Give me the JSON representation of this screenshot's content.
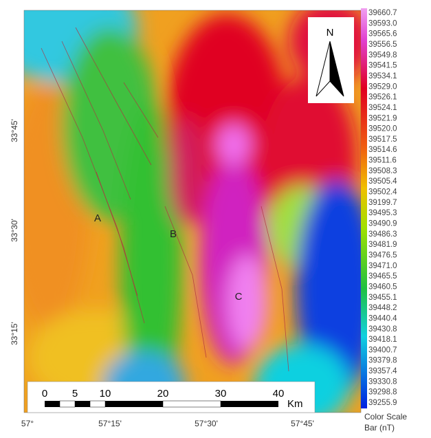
{
  "map": {
    "latitude_labels": [
      "33°45'",
      "33°30'",
      "33°15'"
    ],
    "longitude_labels": [
      "57°",
      "57°15'",
      "57°30'",
      "57°45'"
    ],
    "zones": [
      "A",
      "B",
      "C"
    ],
    "north_arrow": "N",
    "scale_bar": {
      "labels": [
        "0",
        "5",
        "10",
        "20",
        "30",
        "40"
      ],
      "unit": "Km"
    },
    "color_scale": {
      "title": [
        "Color Scale",
        "Bar (nT)"
      ],
      "labels": [
        "39660.7",
        "39593.0",
        "39565.6",
        "39556.5",
        "39549.8",
        "39541.5",
        "39534.1",
        "39529.0",
        "39526.1",
        "39524.1",
        "39521.9",
        "39520.0",
        "39517.5",
        "39514.6",
        "39511.6",
        "39508.3",
        "39505.4",
        "39502.4",
        "39199.7",
        "39495.3",
        "39490.9",
        "39486.3",
        "39481.9",
        "39476.5",
        "39471.0",
        "39465.5",
        "39460.5",
        "39455.1",
        "39448.2",
        "39440.4",
        "39430.8",
        "39418.1",
        "39400.7",
        "39379.8",
        "39357.4",
        "39330.8",
        "39298.8",
        "39255.9"
      ]
    }
  }
}
